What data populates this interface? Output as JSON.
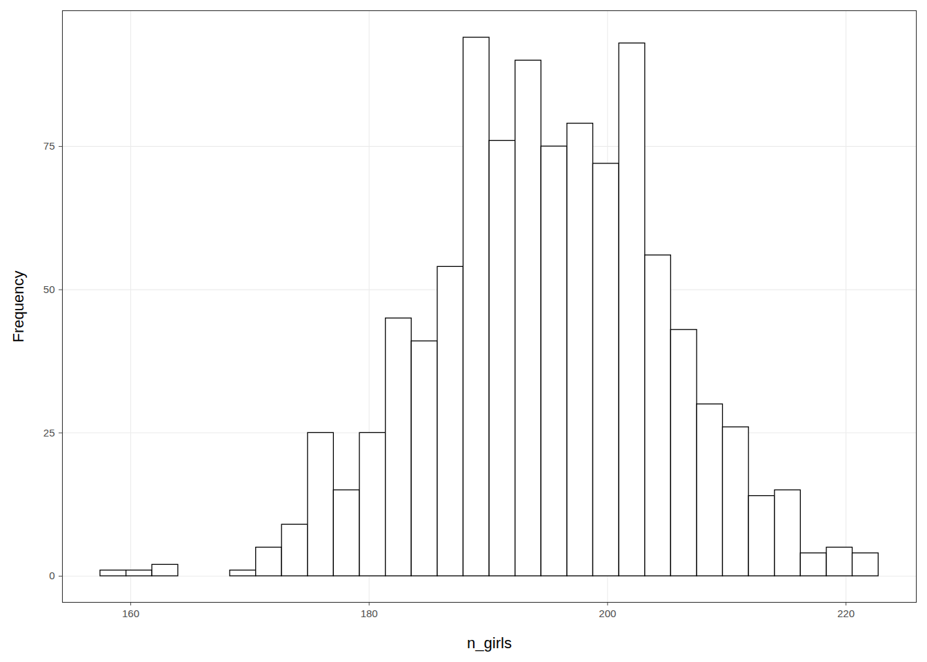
{
  "chart_data": {
    "type": "histogram",
    "x_label": "n_girls",
    "y_label": "Frequency",
    "bins": [
      157.45,
      159.63,
      161.8,
      163.98,
      166.15,
      168.33,
      170.51,
      172.68,
      174.86,
      177.03,
      179.21,
      181.39,
      183.56,
      185.74,
      187.91,
      190.09,
      192.27,
      194.44,
      196.62,
      198.79,
      200.97,
      203.15,
      205.32,
      207.5,
      209.67,
      211.85,
      214.03,
      216.2,
      218.38,
      220.55,
      222.73
    ],
    "values": [
      1,
      1,
      2,
      0,
      0,
      1,
      5,
      9,
      25,
      15,
      25,
      45,
      41,
      54,
      94,
      76,
      90,
      75,
      79,
      72,
      93,
      56,
      43,
      30,
      26,
      14,
      15,
      4,
      5,
      4
    ],
    "color": "#ffffff",
    "xlim": [
      154.27,
      225.9
    ],
    "xticks": [
      160,
      180,
      200,
      220
    ],
    "ylim": [
      -4.57,
      98.7
    ],
    "yticks": [
      0,
      25,
      50,
      75
    ],
    "grid": true
  }
}
